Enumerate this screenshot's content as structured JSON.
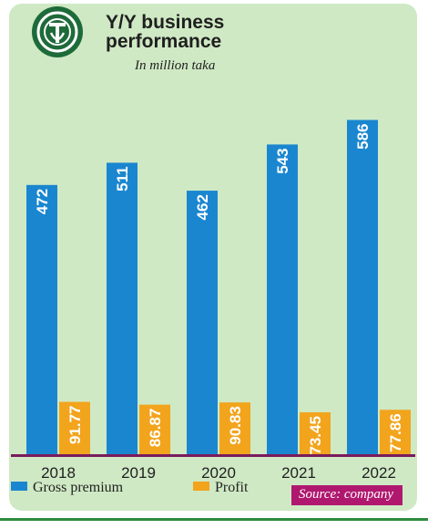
{
  "header": {
    "title_line1": "Y/Y business",
    "title_line2": "performance",
    "unit": "In million taka"
  },
  "source_label": "Source: company",
  "colors": {
    "card_bg": "#cfe9c4",
    "gross_premium": "#1a86d0",
    "profit": "#f2a41c",
    "baseline": "#7a1b5d",
    "source_bg": "#b0186f"
  },
  "chart_data": {
    "type": "bar",
    "categories": [
      "2018",
      "2019",
      "2020",
      "2021",
      "2022"
    ],
    "series": [
      {
        "name": "Gross premium",
        "values": [
          472,
          511,
          462,
          543,
          586
        ],
        "labels": [
          "472",
          "511",
          "462",
          "543",
          "586"
        ]
      },
      {
        "name": "Profit",
        "values": [
          91.77,
          86.87,
          90.83,
          73.45,
          77.86
        ],
        "labels": [
          "91.77",
          "86.87",
          "90.83",
          "73.45",
          "77.86"
        ]
      }
    ],
    "legend_position": "bottom-left",
    "grid": false
  }
}
